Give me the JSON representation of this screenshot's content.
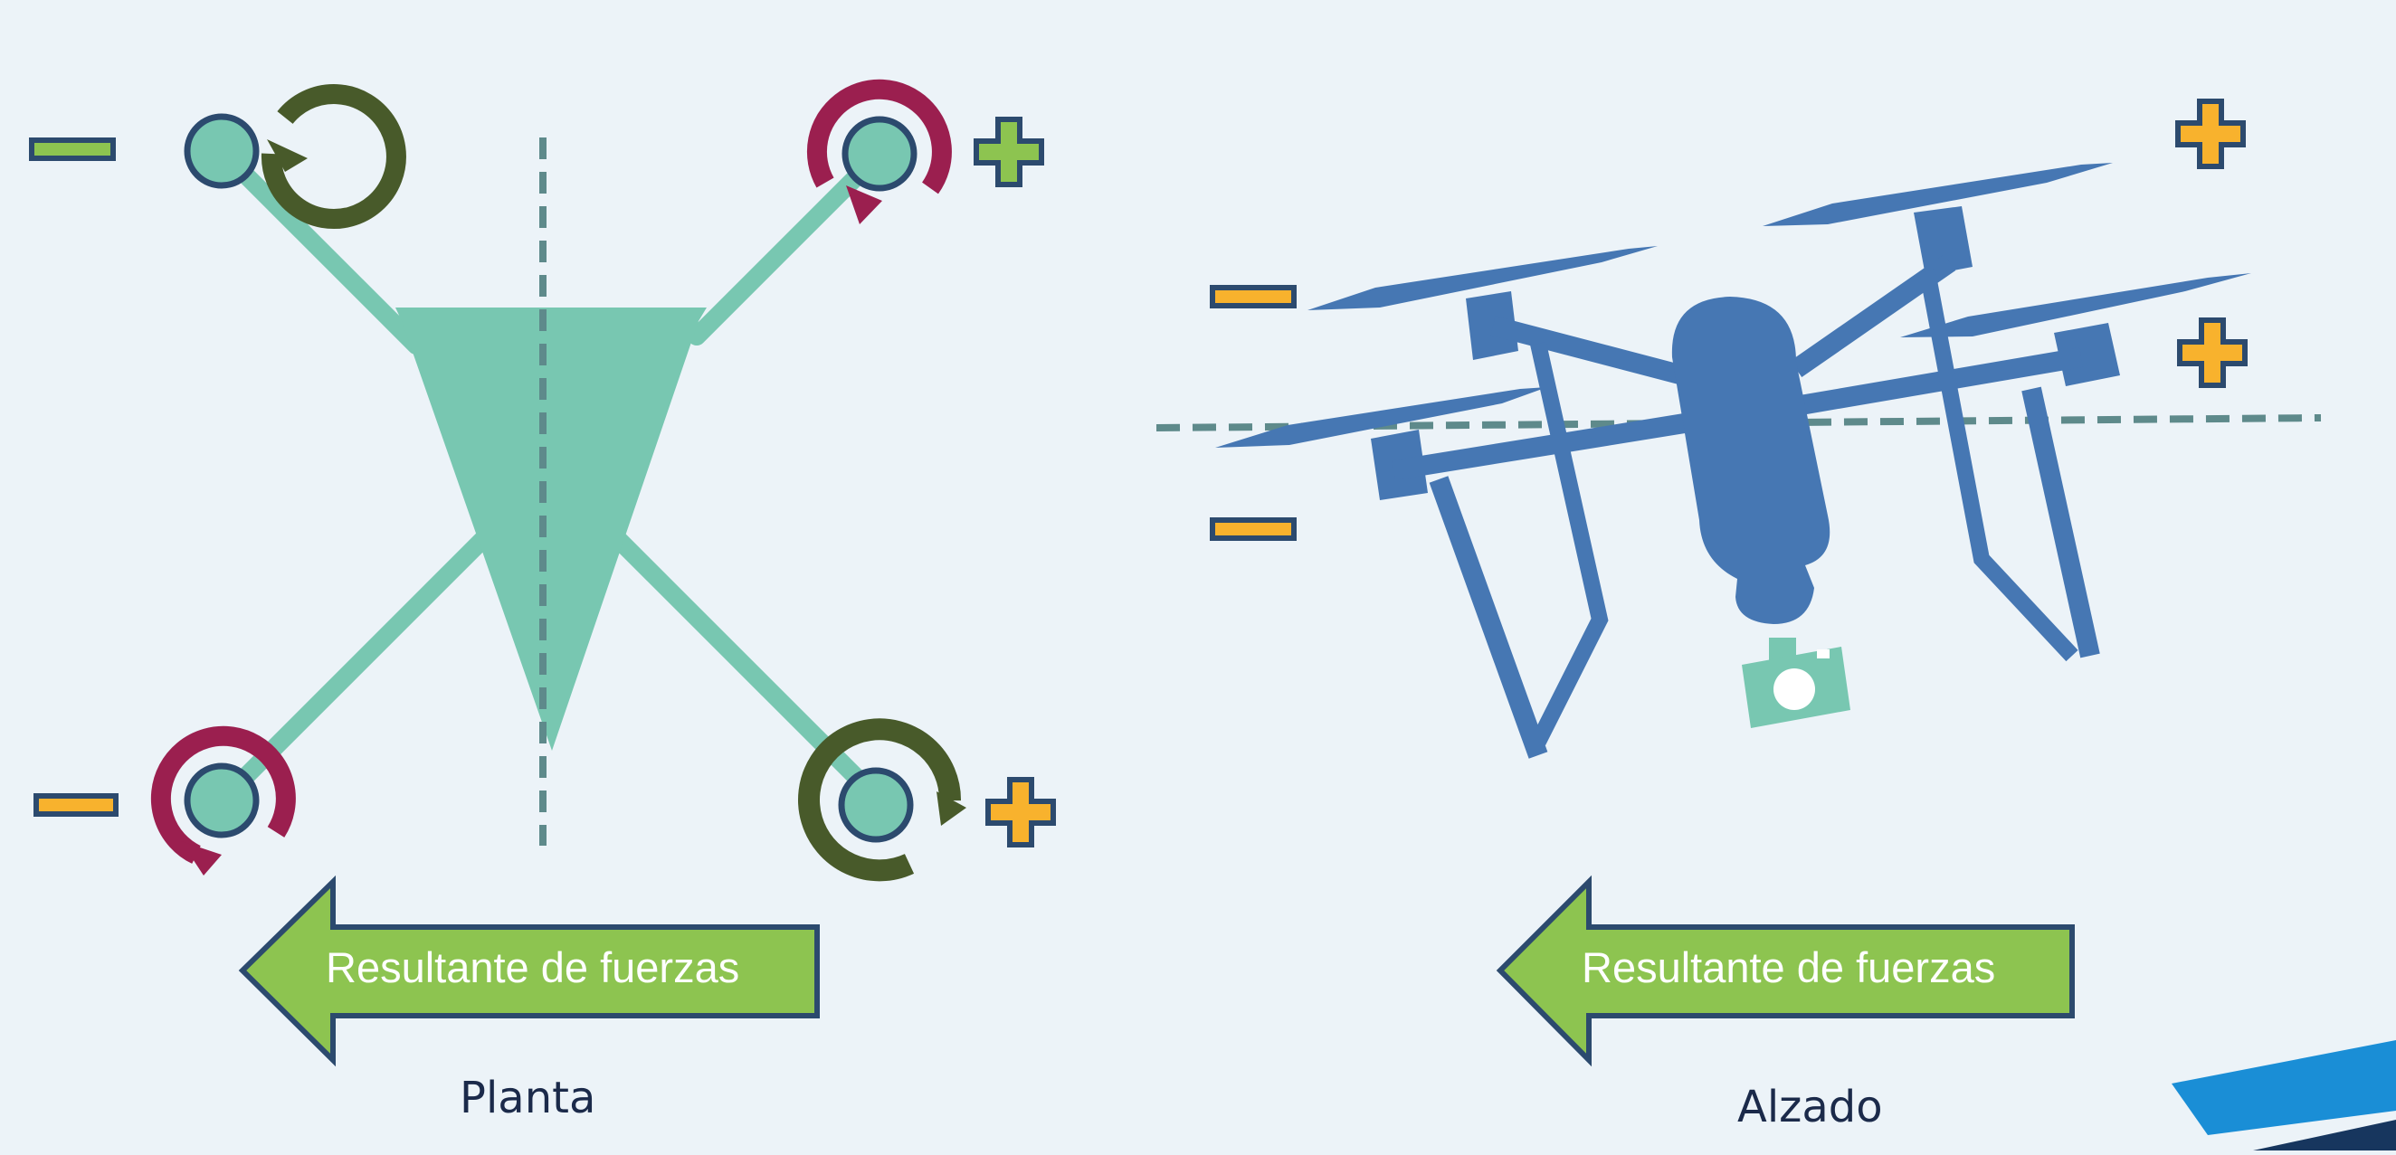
{
  "arrows": [
    {
      "label": "Resultante de fuerzas"
    },
    {
      "label": "Resultante de fuerzas"
    }
  ],
  "captions": {
    "planta": "Planta",
    "alzado": "Alzado"
  },
  "colors": {
    "background": "#ecf3f8",
    "teal": "#78c7b1",
    "drone_blue": "#4677b3",
    "outline_navy": "#2c4a6e",
    "rotation_dark_green": "#485a2a",
    "rotation_crimson": "#9b1f4f",
    "sign_green": "#8dc450",
    "sign_orange": "#f8b22d",
    "axis_dashed": "#5e8a8b",
    "arrow_green": "#8dc450",
    "brand_blue": "#1a8ed6",
    "brand_navy": "#17365e"
  },
  "icons": {
    "rotors_planta": [
      {
        "position": "top-left",
        "rotation": "clockwise",
        "rotation_color": "dark-green",
        "sign": "minus",
        "sign_color": "green"
      },
      {
        "position": "top-right",
        "rotation": "clockwise",
        "rotation_color": "crimson",
        "sign": "plus",
        "sign_color": "green"
      },
      {
        "position": "bottom-left",
        "rotation": "counter-clockwise",
        "rotation_color": "crimson",
        "sign": "minus",
        "sign_color": "orange"
      },
      {
        "position": "bottom-right",
        "rotation": "counter-clockwise",
        "rotation_color": "dark-green",
        "sign": "plus",
        "sign_color": "orange"
      }
    ],
    "signs_alzado": [
      "plus",
      "plus",
      "minus",
      "minus"
    ],
    "drone": "quadcopter-drone-icon",
    "camera": "camera-icon",
    "logo": "brand-corner-logo"
  }
}
